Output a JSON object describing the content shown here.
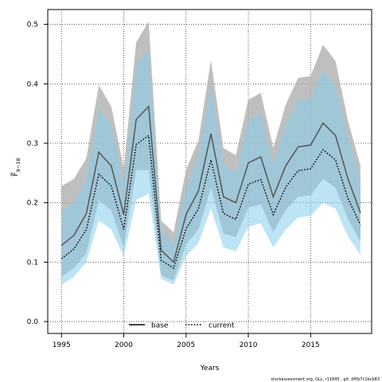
{
  "chart_data": {
    "type": "line",
    "xlabel": "Years",
    "ylabel": "F",
    "ylabel_sub": "9−18",
    "xlim": [
      1993.9,
      2019.9
    ],
    "ylim": [
      -0.02,
      0.525
    ],
    "xticks": [
      1995,
      2000,
      2005,
      2010,
      2015
    ],
    "yticks": [
      0.0,
      0.1,
      0.2,
      0.3,
      0.4,
      0.5
    ],
    "ytick_labels": [
      "0.0",
      "0.1",
      "0.2",
      "0.3",
      "0.4",
      "0.5"
    ],
    "grid": true,
    "legend_position": "bottom-center",
    "footer": "stockassessment.org, GLL, r11845 , git: df0b7c1bcb83",
    "colors": {
      "base_line": "#555555",
      "base_band": "#a9a9a9",
      "base_band_opacity": 0.75,
      "current_line": "#000000",
      "current_band": "#87ceeb",
      "current_band_opacity": 0.55
    },
    "years": [
      1995,
      1996,
      1997,
      1998,
      1999,
      2000,
      2001,
      2002,
      2003,
      2004,
      2005,
      2006,
      2007,
      2008,
      2009,
      2010,
      2011,
      2012,
      2013,
      2014,
      2015,
      2016,
      2017,
      2018,
      2019
    ],
    "series": [
      {
        "name": "base",
        "style": "solid",
        "values": [
          0.128,
          0.145,
          0.182,
          0.285,
          0.262,
          0.18,
          0.34,
          0.362,
          0.12,
          0.1,
          0.18,
          0.22,
          0.316,
          0.21,
          0.2,
          0.267,
          0.277,
          0.21,
          0.262,
          0.294,
          0.297,
          0.334,
          0.313,
          0.24,
          0.183
        ],
        "lower": [
          0.075,
          0.09,
          0.115,
          0.205,
          0.187,
          0.125,
          0.255,
          0.255,
          0.078,
          0.068,
          0.13,
          0.155,
          0.225,
          0.148,
          0.142,
          0.192,
          0.197,
          0.15,
          0.188,
          0.21,
          0.212,
          0.24,
          0.225,
          0.172,
          0.135
        ],
        "upper": [
          0.228,
          0.24,
          0.275,
          0.398,
          0.362,
          0.258,
          0.47,
          0.505,
          0.17,
          0.15,
          0.255,
          0.305,
          0.44,
          0.292,
          0.28,
          0.373,
          0.385,
          0.292,
          0.365,
          0.41,
          0.413,
          0.466,
          0.438,
          0.338,
          0.262
        ]
      },
      {
        "name": "current",
        "style": "dotted",
        "values": [
          0.106,
          0.122,
          0.155,
          0.248,
          0.228,
          0.155,
          0.298,
          0.313,
          0.103,
          0.09,
          0.156,
          0.19,
          0.272,
          0.182,
          0.172,
          0.231,
          0.239,
          0.18,
          0.226,
          0.254,
          0.257,
          0.289,
          0.272,
          0.207,
          0.163
        ],
        "lower": [
          0.062,
          0.075,
          0.1,
          0.17,
          0.155,
          0.11,
          0.205,
          0.215,
          0.072,
          0.062,
          0.11,
          0.132,
          0.19,
          0.125,
          0.118,
          0.16,
          0.165,
          0.125,
          0.155,
          0.175,
          0.178,
          0.2,
          0.19,
          0.143,
          0.112
        ],
        "upper": [
          0.185,
          0.2,
          0.24,
          0.36,
          0.332,
          0.23,
          0.43,
          0.458,
          0.152,
          0.132,
          0.225,
          0.28,
          0.4,
          0.265,
          0.25,
          0.338,
          0.35,
          0.265,
          0.33,
          0.372,
          0.375,
          0.423,
          0.398,
          0.31,
          0.24
        ]
      }
    ]
  }
}
